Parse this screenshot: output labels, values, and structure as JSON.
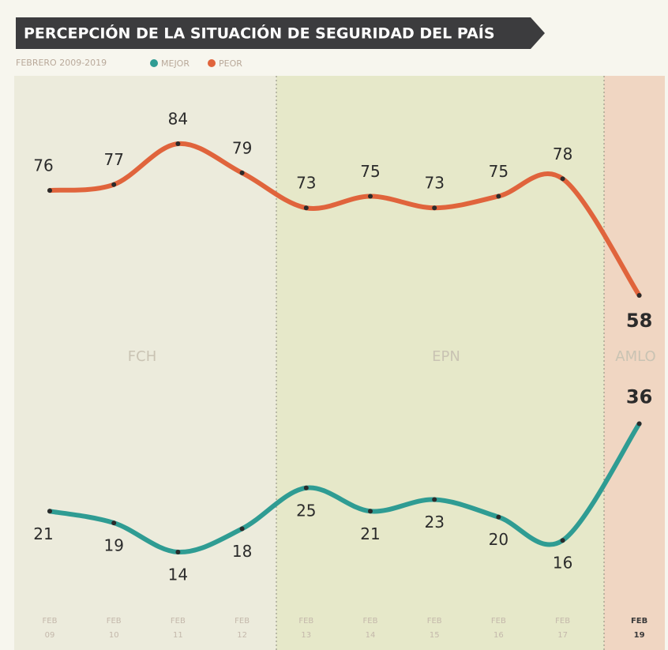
{
  "chart_data": {
    "type": "line",
    "title": "PERCEPCIÓN DE LA SITUACIÓN DE SEGURIDAD DEL PAÍS",
    "subtitle": "FEBRERO 2009-2019",
    "categories": [
      "FEB 09",
      "FEB 10",
      "FEB 11",
      "FEB 12",
      "FEB 13",
      "FEB 14",
      "FEB 15",
      "FEB 16",
      "FEB 17",
      "FEB 19"
    ],
    "series": [
      {
        "name": "MEJOR",
        "color": "#2f9c93",
        "values": [
          21,
          19,
          14,
          18,
          25,
          21,
          23,
          20,
          16,
          36
        ]
      },
      {
        "name": "PEOR",
        "color": "#e0643c",
        "values": [
          76,
          77,
          84,
          79,
          73,
          75,
          73,
          75,
          78,
          58
        ]
      }
    ],
    "periods": [
      "FCH",
      "EPN",
      "AMLO"
    ]
  }
}
